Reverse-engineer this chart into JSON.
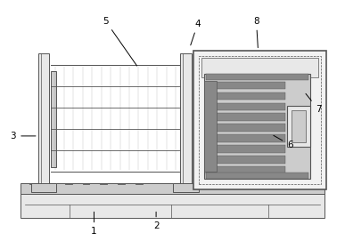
{
  "bg_color": "#ffffff",
  "dc": "#555555",
  "lf": "#e8e8e8",
  "mf": "#cccccc",
  "df": "#888888",
  "figsize": [
    3.87,
    2.71
  ],
  "dpi": 100
}
